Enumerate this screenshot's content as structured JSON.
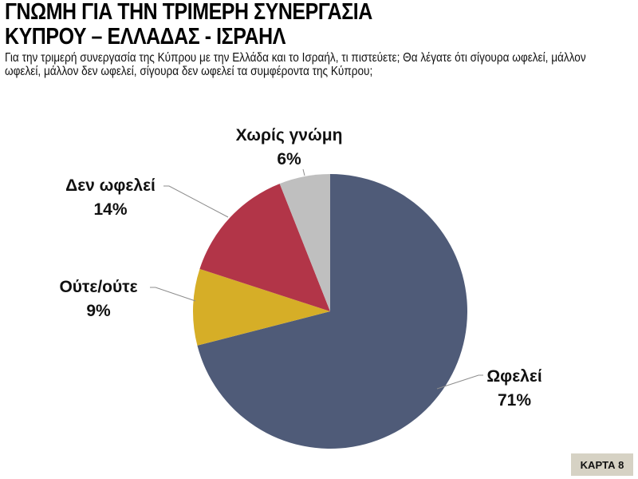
{
  "header": {
    "title_line1": "ΓΝΩΜΗ ΓΙΑ ΤΗΝ ΤΡΙΜΕΡΗ ΣΥΝΕΡΓΑΣΙΑ",
    "title_line2": "ΚΥΠΡΟΥ – ΕΛΛΑΔΑΣ - ΙΣΡΑΗΛ",
    "subtitle": "Για την τριμερή συνεργασία της Κύπρου με την Ελλάδα και το Ισραήλ, τι πιστεύετε; Θα λέγατε ότι σίγουρα ωφελεί, μάλλον ωφελεί, μάλλον δεν ωφελεί, σίγουρα δεν ωφελεί τα συμφέροντα της Κύπρου;"
  },
  "labels": {
    "benefits": {
      "name": "Ωφελεί",
      "pct": "71%"
    },
    "neither": {
      "name": "Ούτε/ούτε",
      "pct": "9%"
    },
    "not_benefit": {
      "name": "Δεν ωφελεί",
      "pct": "14%"
    },
    "no_opinion": {
      "name": "Χωρίς γνώμη",
      "pct": "6%"
    }
  },
  "badge": "ΚΑΡΤΑ 8",
  "chart_data": {
    "type": "pie",
    "title": "ΓΝΩΜΗ ΓΙΑ ΤΗΝ ΤΡΙΜΕΡΗ ΣΥΝΕΡΓΑΣΙΑ ΚΥΠΡΟΥ – ΕΛΛΑΔΑΣ - ΙΣΡΑΗΛ",
    "subtitle": "Για την τριμερή συνεργασία της Κύπρου με την Ελλάδα και το Ισραήλ, τι πιστεύετε; Θα λέγατε ότι σίγουρα ωφελεί, μάλλον ωφελεί, μάλλον δεν ωφελεί, σίγουρα δεν ωφελεί τα συμφέροντα της Κύπρου;",
    "categories": [
      "Ωφελεί",
      "Ούτε/ούτε",
      "Δεν ωφελεί",
      "Χωρίς γνώμη"
    ],
    "values": [
      71,
      9,
      14,
      6
    ],
    "unit": "%",
    "colors": [
      "#4f5b78",
      "#d6ae27",
      "#b23548",
      "#bfbfbf"
    ],
    "start_angle": "12 o'clock, clockwise",
    "legend": "none (data labels with leader lines)"
  }
}
